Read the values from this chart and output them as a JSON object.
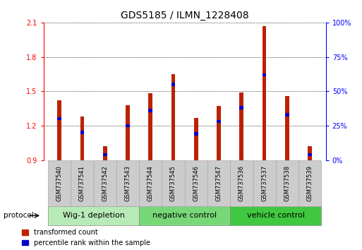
{
  "title": "GDS5185 / ILMN_1228408",
  "samples": [
    "GSM737540",
    "GSM737541",
    "GSM737542",
    "GSM737543",
    "GSM737544",
    "GSM737545",
    "GSM737546",
    "GSM737547",
    "GSM737536",
    "GSM737537",
    "GSM737538",
    "GSM737539"
  ],
  "transformed_count": [
    1.42,
    1.28,
    1.02,
    1.38,
    1.48,
    1.65,
    1.27,
    1.37,
    1.49,
    2.07,
    1.46,
    1.02
  ],
  "percentile_rank_pct": [
    30,
    20,
    4,
    25,
    36,
    55,
    19,
    28,
    38,
    62,
    33,
    4
  ],
  "ylim_left": [
    0.9,
    2.1
  ],
  "ylim_right": [
    0,
    100
  ],
  "yticks_left": [
    0.9,
    1.2,
    1.5,
    1.8,
    2.1
  ],
  "yticks_right": [
    0,
    25,
    50,
    75,
    100
  ],
  "groups": [
    {
      "label": "Wig-1 depletion",
      "start": 0,
      "end": 4,
      "color": "#b8eab8"
    },
    {
      "label": "negative control",
      "start": 4,
      "end": 8,
      "color": "#78d878"
    },
    {
      "label": "vehicle control",
      "start": 8,
      "end": 12,
      "color": "#40c840"
    }
  ],
  "bar_color_red": "#bb2200",
  "bar_color_blue": "#0000cc",
  "bar_width": 0.18,
  "blue_bar_height": 0.028,
  "protocol_label": "protocol",
  "legend_red": "transformed count",
  "legend_blue": "percentile rank within the sample",
  "background_color": "#ffffff",
  "title_fontsize": 10,
  "tick_fontsize": 7,
  "group_label_fontsize": 8,
  "sample_fontsize": 6
}
